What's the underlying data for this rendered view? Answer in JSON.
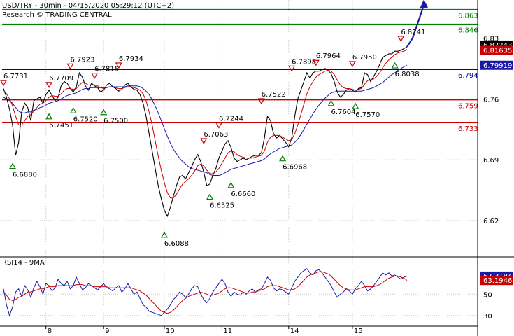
{
  "header": {
    "title": "USD/TRY - 30min - 04/15/2020 05:29:12 (UTC+2)",
    "subtitle": "Research © TRADING CENTRAL"
  },
  "rsi_panel": {
    "label": "RSI14 - 9MA"
  },
  "chart_data": [
    {
      "type": "line",
      "title": "USD/TRY - 30min - 04/15/2020 05:29:12 (UTC+2)",
      "ylim": [
        6.578,
        6.874
      ],
      "x_ticks": [
        "8",
        "9",
        "10",
        "11",
        "14",
        "15"
      ],
      "y_ticks": [
        6.62,
        6.69,
        6.76,
        6.83
      ],
      "levels": [
        {
          "value": 6.863,
          "label": "6.863",
          "color": "#007f00"
        },
        {
          "value": 6.846,
          "label": "6.846",
          "color": "#007f00"
        },
        {
          "value": 6.794,
          "label": "6.794",
          "color": "#00009f"
        },
        {
          "value": 6.759,
          "label": "6.759",
          "color": "#cc0000"
        },
        {
          "value": 6.733,
          "label": "6.733",
          "color": "#cc0000"
        }
      ],
      "tags": [
        {
          "value": 6.82243,
          "label": "6.82243",
          "bg": "#000000"
        },
        {
          "value": 6.81635,
          "label": "6.81635",
          "bg": "#cc0000"
        },
        {
          "value": 6.79919,
          "label": "6.79919",
          "bg": "#1a1aa6"
        }
      ],
      "annotations": [
        {
          "label": "6.7731",
          "dir": "high"
        },
        {
          "label": "6.7709",
          "dir": "high"
        },
        {
          "label": "6.7923",
          "dir": "high"
        },
        {
          "label": "6.7815",
          "dir": "high"
        },
        {
          "label": "6.7934",
          "dir": "high"
        },
        {
          "label": "6.7244",
          "dir": "high"
        },
        {
          "label": "6.7063",
          "dir": "high"
        },
        {
          "label": "6.7522",
          "dir": "high"
        },
        {
          "label": "6.7898",
          "dir": "high"
        },
        {
          "label": "6.7964",
          "dir": "high"
        },
        {
          "label": "6.7950",
          "dir": "high"
        },
        {
          "label": "6.8241",
          "dir": "high"
        },
        {
          "label": "6.6880",
          "dir": "low"
        },
        {
          "label": "6.7451",
          "dir": "low"
        },
        {
          "label": "6.7520",
          "dir": "low"
        },
        {
          "label": "6.7500",
          "dir": "low"
        },
        {
          "label": "6.6525",
          "dir": "low"
        },
        {
          "label": "6.6660",
          "dir": "low"
        },
        {
          "label": "6.6088",
          "dir": "low"
        },
        {
          "label": "6.6968",
          "dir": "low"
        },
        {
          "label": "6.7604",
          "dir": "low"
        },
        {
          "label": "6.7570",
          "dir": "low"
        },
        {
          "label": "6.8038",
          "dir": "low"
        }
      ],
      "series": [
        {
          "color": "#000000",
          "values": [
            6.772,
            6.762,
            6.748,
            6.73,
            6.695,
            6.71,
            6.745,
            6.755,
            6.75,
            6.735,
            6.758,
            6.76,
            6.762,
            6.755,
            6.765,
            6.77,
            6.764,
            6.758,
            6.762,
            6.775,
            6.78,
            6.778,
            6.772,
            6.768,
            6.774,
            6.79,
            6.785,
            6.775,
            6.77,
            6.778,
            6.775,
            6.773,
            6.768,
            6.77,
            6.776,
            6.778,
            6.774,
            6.772,
            6.769,
            6.771,
            6.776,
            6.778,
            6.774,
            6.771,
            6.77,
            6.765,
            6.755,
            6.74,
            6.72,
            6.7,
            6.68,
            6.66,
            6.645,
            6.632,
            6.625,
            6.635,
            6.648,
            6.66,
            6.67,
            6.672,
            6.668,
            6.675,
            6.682,
            6.69,
            6.696,
            6.688,
            6.676,
            6.66,
            6.662,
            6.672,
            6.68,
            6.692,
            6.7,
            6.708,
            6.712,
            6.704,
            6.692,
            6.688,
            6.69,
            6.692,
            6.69,
            6.692,
            6.694,
            6.695,
            6.695,
            6.698,
            6.715,
            6.74,
            6.735,
            6.72,
            6.715,
            6.718,
            6.714,
            6.71,
            6.705,
            6.715,
            6.74,
            6.76,
            6.77,
            6.78,
            6.79,
            6.784,
            6.79,
            6.792,
            6.792,
            6.794,
            6.795,
            6.793,
            6.789,
            6.78,
            6.768,
            6.762,
            6.765,
            6.77,
            6.772,
            6.77,
            6.768,
            6.772,
            6.773,
            6.79,
            6.788,
            6.78,
            6.786,
            6.792,
            6.8,
            6.808,
            6.81,
            6.812,
            6.812,
            6.815,
            6.815,
            6.816,
            6.818,
            6.82
          ]
        },
        {
          "color": "#cc0000",
          "values": [
            6.77,
            6.766,
            6.76,
            6.752,
            6.74,
            6.73,
            6.73,
            6.735,
            6.74,
            6.742,
            6.746,
            6.75,
            6.754,
            6.755,
            6.758,
            6.762,
            6.764,
            6.763,
            6.763,
            6.766,
            6.77,
            6.772,
            6.772,
            6.771,
            6.772,
            6.776,
            6.779,
            6.778,
            6.776,
            6.776,
            6.776,
            6.775,
            6.773,
            6.772,
            6.773,
            6.774,
            6.774,
            6.773,
            6.772,
            6.772,
            6.773,
            6.774,
            6.774,
            6.773,
            6.772,
            6.77,
            6.766,
            6.758,
            6.745,
            6.73,
            6.712,
            6.694,
            6.678,
            6.664,
            6.652,
            6.646,
            6.646,
            6.65,
            6.656,
            6.662,
            6.665,
            6.668,
            6.672,
            6.677,
            6.683,
            6.685,
            6.683,
            6.678,
            6.674,
            6.674,
            6.676,
            6.68,
            6.686,
            6.692,
            6.698,
            6.7,
            6.699,
            6.696,
            6.694,
            6.693,
            6.692,
            6.692,
            6.692,
            6.693,
            6.694,
            6.695,
            6.7,
            6.71,
            6.716,
            6.718,
            6.718,
            6.718,
            6.716,
            6.714,
            6.712,
            6.713,
            6.72,
            6.73,
            6.742,
            6.754,
            6.766,
            6.774,
            6.78,
            6.785,
            6.788,
            6.79,
            6.792,
            6.793,
            6.792,
            6.788,
            6.782,
            6.776,
            6.773,
            6.772,
            6.772,
            6.771,
            6.77,
            6.771,
            6.772,
            6.777,
            6.781,
            6.782,
            6.783,
            6.786,
            6.79,
            6.796,
            6.801,
            6.805,
            6.808,
            6.811,
            6.813,
            6.814,
            6.815,
            6.817
          ]
        },
        {
          "color": "#1a1aa6",
          "values": [
            6.762,
            6.76,
            6.758,
            6.755,
            6.75,
            6.746,
            6.744,
            6.744,
            6.745,
            6.745,
            6.747,
            6.748,
            6.75,
            6.751,
            6.753,
            6.755,
            6.756,
            6.757,
            6.758,
            6.76,
            6.762,
            6.764,
            6.765,
            6.766,
            6.767,
            6.769,
            6.771,
            6.772,
            6.772,
            6.773,
            6.773,
            6.773,
            6.773,
            6.773,
            6.773,
            6.774,
            6.774,
            6.774,
            6.774,
            6.774,
            6.774,
            6.775,
            6.775,
            6.775,
            6.775,
            6.774,
            6.772,
            6.769,
            6.765,
            6.759,
            6.752,
            6.744,
            6.735,
            6.726,
            6.717,
            6.709,
            6.702,
            6.697,
            6.692,
            6.688,
            6.685,
            6.682,
            6.68,
            6.679,
            6.678,
            6.677,
            6.676,
            6.675,
            6.673,
            6.672,
            6.672,
            6.672,
            6.673,
            6.675,
            6.677,
            6.679,
            6.68,
            6.681,
            6.682,
            6.683,
            6.684,
            6.685,
            6.686,
            6.687,
            6.688,
            6.689,
            6.691,
            6.694,
            6.697,
            6.699,
            6.701,
            6.703,
            6.704,
            6.705,
            6.706,
            6.707,
            6.71,
            6.714,
            6.719,
            6.725,
            6.731,
            6.737,
            6.743,
            6.748,
            6.753,
            6.757,
            6.761,
            6.764,
            6.767,
            6.768,
            6.769,
            6.769,
            6.769,
            6.769,
            6.769,
            6.769,
            6.769,
            6.769,
            6.769,
            6.77,
            6.771,
            6.772,
            6.773,
            6.775,
            6.777,
            6.779,
            6.782,
            6.785,
            6.788,
            6.79,
            6.793,
            6.795,
            6.797,
            6.799
          ]
        }
      ]
    },
    {
      "type": "line",
      "title": "RSI14 - 9MA",
      "ylim": [
        20,
        85
      ],
      "y_ticks": [
        30,
        50
      ],
      "tags": [
        {
          "value": 67.3184,
          "label": "67.3184",
          "bg": "#1a1aa6"
        },
        {
          "value": 63.1946,
          "label": "63.1946",
          "bg": "#cc0000"
        }
      ],
      "series": [
        {
          "color": "#1a1aa6",
          "values": [
            55,
            40,
            30,
            38,
            52,
            55,
            48,
            58,
            54,
            47,
            56,
            62,
            57,
            50,
            60,
            58,
            53,
            56,
            64,
            60,
            58,
            62,
            55,
            58,
            66,
            60,
            54,
            56,
            60,
            58,
            56,
            54,
            57,
            60,
            56,
            55,
            53,
            56,
            58,
            52,
            55,
            60,
            55,
            50,
            52,
            46,
            40,
            38,
            34,
            33,
            32,
            31,
            30,
            33,
            36,
            40,
            45,
            48,
            52,
            50,
            47,
            50,
            55,
            58,
            57,
            50,
            45,
            42,
            46,
            52,
            56,
            60,
            64,
            60,
            52,
            48,
            52,
            50,
            49,
            52,
            50,
            53,
            55,
            52,
            54,
            55,
            60,
            66,
            63,
            56,
            53,
            55,
            54,
            52,
            50,
            56,
            62,
            66,
            70,
            72,
            74,
            70,
            68,
            72,
            73,
            70,
            66,
            62,
            58,
            52,
            47,
            50,
            52,
            55,
            53,
            50,
            55,
            58,
            62,
            58,
            53,
            55,
            58,
            62,
            66,
            70,
            68,
            70,
            67,
            68,
            66,
            64,
            66,
            67
          ]
        },
        {
          "color": "#cc0000",
          "values": [
            52,
            49,
            45,
            44,
            45,
            47,
            48,
            50,
            52,
            52,
            53,
            54,
            55,
            55,
            56,
            57,
            57,
            57,
            58,
            58,
            58,
            58,
            58,
            58,
            59,
            59,
            59,
            58,
            58,
            58,
            57,
            57,
            57,
            57,
            57,
            56,
            56,
            56,
            56,
            56,
            56,
            56,
            56,
            55,
            54,
            53,
            51,
            49,
            46,
            43,
            40,
            37,
            34,
            33,
            32,
            33,
            35,
            38,
            41,
            44,
            46,
            48,
            49,
            50,
            51,
            52,
            51,
            50,
            49,
            49,
            50,
            51,
            53,
            55,
            56,
            56,
            55,
            54,
            53,
            52,
            51,
            51,
            52,
            52,
            53,
            54,
            55,
            57,
            58,
            58,
            58,
            57,
            56,
            55,
            54,
            54,
            55,
            57,
            60,
            63,
            66,
            68,
            69,
            70,
            71,
            71,
            70,
            69,
            67,
            64,
            61,
            58,
            56,
            55,
            54,
            54,
            54,
            55,
            56,
            57,
            57,
            57,
            57,
            58,
            59,
            61,
            63,
            65,
            66,
            67,
            67,
            66,
            65,
            63
          ]
        }
      ]
    }
  ]
}
